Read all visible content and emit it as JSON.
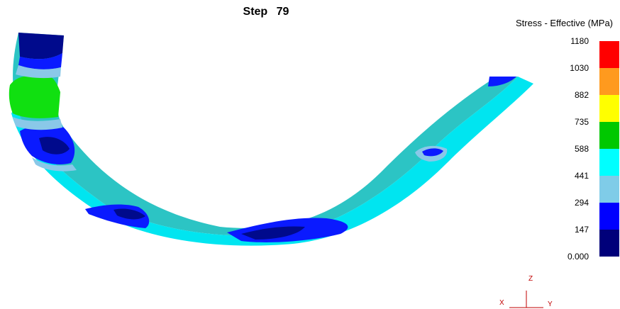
{
  "title": "Step   79",
  "legend": {
    "title": "Stress - Effective (MPa)",
    "labels": [
      "1180",
      "1030",
      "882",
      "735",
      "588",
      "441",
      "294",
      "147",
      "0.000"
    ],
    "colors": [
      "#ff0000",
      "#ff9a1e",
      "#ffff00",
      "#00c800",
      "#00ffff",
      "#7fcce8",
      "#0000ff",
      "#00007a"
    ]
  },
  "colors": {
    "cyan": "#00e5f0",
    "teal": "#2cc4c4",
    "light_blue": "#8ac8e8",
    "blue": "#0a1aff",
    "dark_blue": "#000a8c",
    "green": "#10e010",
    "axis": "#c00000"
  },
  "axes": {
    "z": "Z",
    "x": "X",
    "y": "Y"
  }
}
